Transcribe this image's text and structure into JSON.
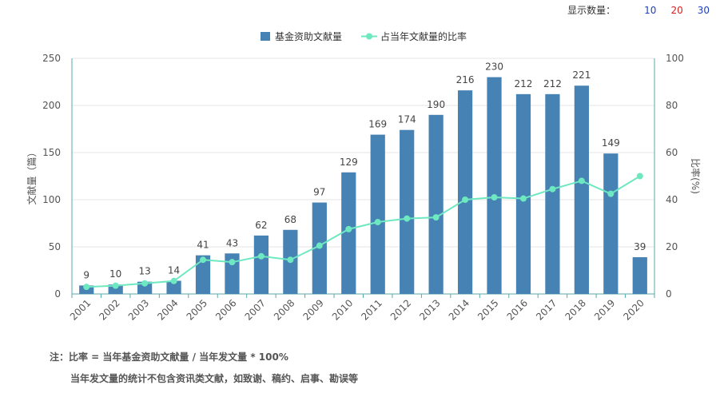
{
  "controls": {
    "display_label": "显示数量：",
    "options": [
      {
        "label": "10",
        "color": "#1f3fbf"
      },
      {
        "label": "20",
        "color": "#d62020"
      },
      {
        "label": "30",
        "color": "#1f3fbf"
      }
    ]
  },
  "notes": {
    "line1": "注：比率 = 当年基金资助文献量 / 当年发文量 * 100%",
    "line2": "当年发文量的统计不包含资讯类文献，如致谢、稿约、启事、勘误等"
  },
  "chart_data": {
    "type": "bar",
    "categories": [
      "2001",
      "2002",
      "2003",
      "2004",
      "2005",
      "2006",
      "2007",
      "2008",
      "2009",
      "2010",
      "2011",
      "2012",
      "2013",
      "2014",
      "2015",
      "2016",
      "2017",
      "2018",
      "2019",
      "2020"
    ],
    "series": [
      {
        "name": "基金资助文献量",
        "kind": "bar",
        "axis": "left",
        "color": "#4682b4",
        "values": [
          9,
          10,
          13,
          14,
          41,
          43,
          62,
          68,
          97,
          129,
          169,
          174,
          190,
          216,
          230,
          212,
          212,
          221,
          149,
          39
        ]
      },
      {
        "name": "占当年文献量的比率",
        "kind": "line",
        "axis": "right",
        "color": "#6ee8c0",
        "values": [
          3,
          3.5,
          4.5,
          5.5,
          14.5,
          13.5,
          16,
          14.5,
          20.5,
          27.5,
          30.5,
          32,
          32.5,
          40,
          41,
          40.5,
          44.5,
          48,
          42.5,
          50
        ]
      }
    ],
    "ylabel": "文献量（篇）",
    "y2label": "比率(%)",
    "ylim": [
      0,
      250
    ],
    "y2lim": [
      0,
      100
    ],
    "yticks": [
      0,
      50,
      100,
      150,
      200,
      250
    ],
    "y2ticks": [
      0,
      20,
      40,
      60,
      80,
      100
    ],
    "legend_position": "top-center",
    "grid": true
  }
}
